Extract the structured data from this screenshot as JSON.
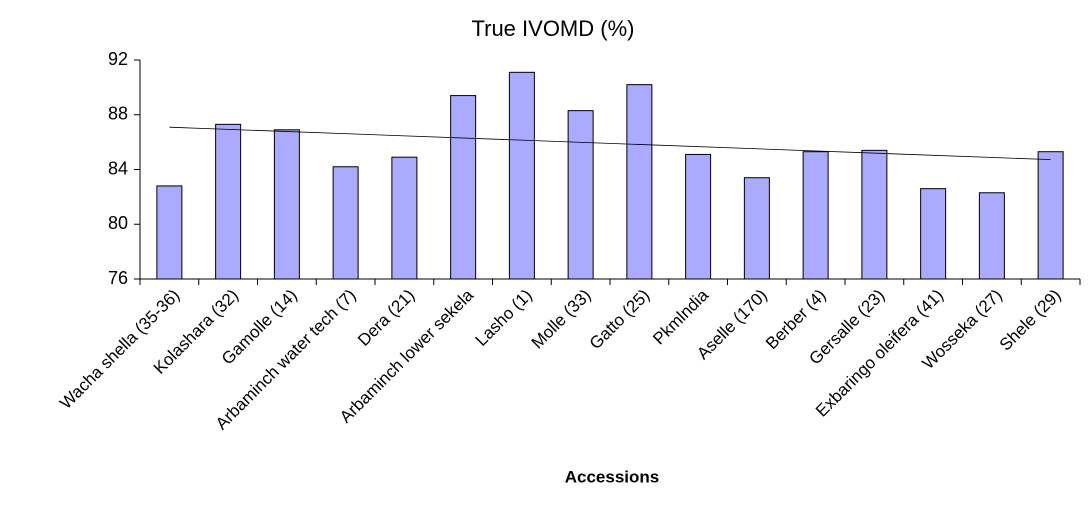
{
  "chart_data": {
    "type": "bar",
    "title": "True IVOMD (%)",
    "x_label": "Accessions",
    "categories": [
      "Wacha shella (35-36)",
      "Kolashara (32)",
      "Gamolle (14)",
      "Arbaminch water tech (7)",
      "Dera (21)",
      "Arbaminch lower sekela",
      "Lasho (1)",
      "Molle (33)",
      "Gatto (25)",
      "Pkmlndia",
      "Aselle (170)",
      "Berber (4)",
      "Gersalle (23)",
      "Exbaringo oleifera (41)",
      "Wosseka (27)",
      "Shele (29)"
    ],
    "values": [
      82.8,
      87.3,
      86.9,
      84.2,
      84.9,
      89.4,
      91.1,
      88.3,
      90.2,
      85.1,
      83.4,
      85.3,
      85.4,
      82.6,
      82.3,
      85.3
    ],
    "color": "#aaaaff",
    "ylim": [
      76,
      92
    ],
    "yticks": [
      76,
      80,
      84,
      88,
      92
    ],
    "trendline": true
  }
}
